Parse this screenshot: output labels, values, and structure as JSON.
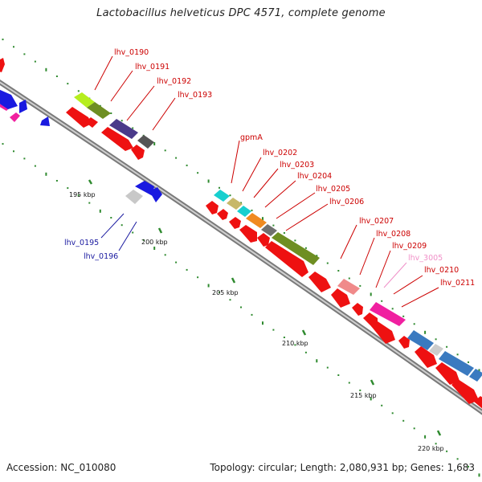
{
  "title": "Lactobacillus helveticus DPC 4571, complete genome",
  "footer": {
    "accession": "Accession: NC_010080",
    "summary": "Topology: circular; Length: 2,080,931 bp; Genes: 1,683"
  },
  "colors": {
    "backbone": "#8a8a8a",
    "tick": "#2f8a2f",
    "forward_cds": "#ee1111",
    "reverse_cds": "#1a1ae0",
    "label_red": "#cc0000",
    "label_blue": "#1a1aa0",
    "label_pink": "#f090c8"
  },
  "scale_labels": [
    "195 kbp",
    "200 kbp",
    "205 kbp",
    "210 kbp",
    "215 kbp",
    "220 kbp"
  ],
  "gene_labels": [
    {
      "name": "lhv_0190",
      "color": "#cc0000"
    },
    {
      "name": "lhv_0191",
      "color": "#cc0000"
    },
    {
      "name": "lhv_0192",
      "color": "#cc0000"
    },
    {
      "name": "lhv_0193",
      "color": "#cc0000"
    },
    {
      "name": "gpmA",
      "color": "#cc0000"
    },
    {
      "name": "lhv_0202",
      "color": "#cc0000"
    },
    {
      "name": "lhv_0203",
      "color": "#cc0000"
    },
    {
      "name": "lhv_0204",
      "color": "#cc0000"
    },
    {
      "name": "lhv_0205",
      "color": "#cc0000"
    },
    {
      "name": "lhv_0206",
      "color": "#cc0000"
    },
    {
      "name": "lhv_0207",
      "color": "#cc0000"
    },
    {
      "name": "lhv_0208",
      "color": "#cc0000"
    },
    {
      "name": "lhv_0209",
      "color": "#cc0000"
    },
    {
      "name": "lhv_3005",
      "color": "#f090c8"
    },
    {
      "name": "lhv_0210",
      "color": "#cc0000"
    },
    {
      "name": "lhv_0211",
      "color": "#cc0000"
    },
    {
      "name": "lhv_0195",
      "color": "#1a1aa0"
    },
    {
      "name": "lhv_0196",
      "color": "#1a1aa0"
    }
  ]
}
